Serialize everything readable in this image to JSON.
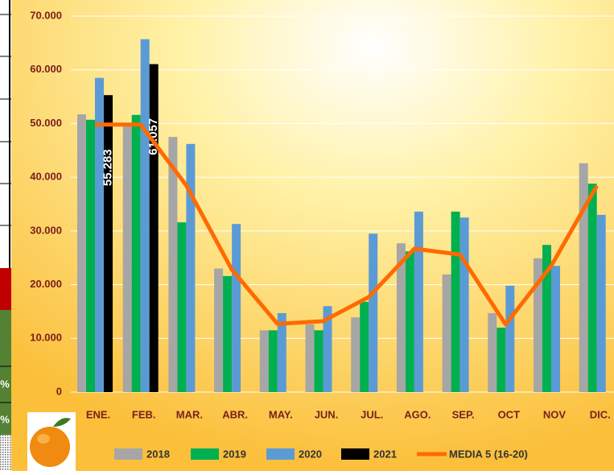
{
  "side_table": {
    "cells": [
      "%",
      "%"
    ]
  },
  "chart_data": {
    "type": "bar",
    "categories": [
      "ENE.",
      "FEB.",
      "MAR.",
      "ABR.",
      "MAY.",
      "JUN.",
      "JUL.",
      "AGO.",
      "SEP.",
      "OCT",
      "NOV",
      "DIC."
    ],
    "series": [
      {
        "name": "2018",
        "color": "#a6a6a6",
        "values": [
          51700,
          49800,
          47500,
          23000,
          11500,
          12600,
          13900,
          27700,
          21900,
          14700,
          24900,
          42600
        ]
      },
      {
        "name": "2019",
        "color": "#00b050",
        "values": [
          50700,
          51600,
          31600,
          21600,
          11500,
          11500,
          16800,
          26200,
          33600,
          12000,
          27400,
          38800
        ]
      },
      {
        "name": "2020",
        "color": "#5b9bd5",
        "values": [
          58500,
          65700,
          46200,
          31300,
          14700,
          16000,
          29500,
          33600,
          32500,
          19800,
          23500,
          33000
        ]
      },
      {
        "name": "2021",
        "color": "#000000",
        "values": [
          55283,
          61057,
          null,
          null,
          null,
          null,
          null,
          null,
          null,
          null,
          null,
          null
        ],
        "value_labels": [
          "55.283",
          "61.057",
          null,
          null,
          null,
          null,
          null,
          null,
          null,
          null,
          null,
          null
        ]
      },
      {
        "name": "MEDIA 5 (16-20)",
        "color": "#ff6a00",
        "type": "line",
        "values": [
          49800,
          49800,
          38500,
          22800,
          12700,
          13200,
          17700,
          26700,
          25600,
          12600,
          23500,
          38400
        ]
      }
    ],
    "ylim": [
      0,
      70000
    ],
    "yticks": [
      0,
      {
        "value": 10000,
        "label": "10.000"
      },
      {
        "value": 20000,
        "label": "20.000"
      },
      {
        "value": 30000,
        "label": "30.000"
      },
      {
        "value": 40000,
        "label": "40.000"
      },
      {
        "value": 50000,
        "label": "50.000"
      },
      {
        "value": 60000,
        "label": "60.000"
      },
      {
        "value": 70000,
        "label": "70.000"
      }
    ],
    "grid": true
  }
}
